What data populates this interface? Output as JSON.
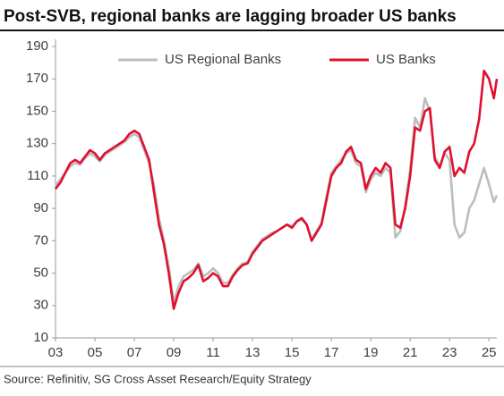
{
  "chart_data": {
    "type": "line",
    "title": "Post-SVB, regional banks are lagging broader US banks",
    "source": "Source: Refinitiv, SG Cross Asset Research/Equity Strategy",
    "legend": "top",
    "x": [
      3,
      3.25,
      3.5,
      3.75,
      4,
      4.25,
      4.5,
      4.75,
      5,
      5.25,
      5.5,
      5.75,
      6,
      6.25,
      6.5,
      6.75,
      7,
      7.25,
      7.5,
      7.75,
      8,
      8.25,
      8.5,
      8.75,
      9,
      9.25,
      9.5,
      9.75,
      10,
      10.25,
      10.5,
      10.75,
      11,
      11.25,
      11.5,
      11.75,
      12,
      12.25,
      12.5,
      12.75,
      13,
      13.25,
      13.5,
      13.75,
      14,
      14.25,
      14.5,
      14.75,
      15,
      15.25,
      15.5,
      15.75,
      16,
      16.25,
      16.5,
      16.75,
      17,
      17.25,
      17.5,
      17.75,
      18,
      18.25,
      18.5,
      18.75,
      19,
      19.25,
      19.5,
      19.75,
      20,
      20.25,
      20.5,
      20.75,
      21,
      21.25,
      21.5,
      21.75,
      22,
      22.25,
      22.5,
      22.75,
      23,
      23.25,
      23.5,
      23.75,
      24,
      24.25,
      24.5,
      24.75,
      25,
      25.25,
      25.4
    ],
    "series": [
      {
        "name": "US Regional Banks",
        "color": "#bdbdbd",
        "values": [
          104,
          108,
          112,
          116,
          118,
          117,
          121,
          124,
          122,
          119,
          123,
          125,
          127,
          129,
          131,
          134,
          136,
          134,
          126,
          118,
          104,
          84,
          70,
          54,
          32,
          42,
          48,
          50,
          52,
          56,
          48,
          50,
          53,
          50,
          44,
          44,
          49,
          53,
          56,
          57,
          63,
          67,
          71,
          73,
          75,
          76,
          78,
          80,
          79,
          82,
          83,
          80,
          71,
          76,
          81,
          97,
          112,
          116,
          120,
          124,
          126,
          118,
          116,
          100,
          108,
          112,
          110,
          115,
          112,
          72,
          76,
          92,
          114,
          146,
          140,
          158,
          150,
          122,
          116,
          124,
          120,
          80,
          72,
          75,
          90,
          95,
          105,
          115,
          105,
          94,
          98
        ]
      },
      {
        "name": "US Banks",
        "color": "#e0102f",
        "values": [
          102,
          106,
          112,
          118,
          120,
          118,
          122,
          126,
          124,
          120,
          124,
          126,
          128,
          130,
          132,
          136,
          138,
          136,
          128,
          120,
          100,
          80,
          68,
          50,
          28,
          38,
          45,
          47,
          50,
          55,
          45,
          47,
          50,
          48,
          42,
          42,
          48,
          52,
          55,
          56,
          62,
          66,
          70,
          72,
          74,
          76,
          78,
          80,
          78,
          82,
          84,
          80,
          70,
          75,
          80,
          95,
          110,
          115,
          118,
          125,
          128,
          120,
          118,
          102,
          110,
          115,
          112,
          118,
          115,
          80,
          78,
          90,
          110,
          140,
          138,
          150,
          152,
          120,
          115,
          125,
          128,
          110,
          115,
          112,
          125,
          130,
          145,
          175,
          170,
          158,
          170
        ]
      }
    ],
    "xlim": [
      3,
      25.4
    ],
    "xticks": [
      {
        "value": 3,
        "label": "03"
      },
      {
        "value": 5,
        "label": "05"
      },
      {
        "value": 7,
        "label": "07"
      },
      {
        "value": 9,
        "label": "09"
      },
      11,
      13,
      15,
      17,
      19,
      21,
      23,
      25
    ],
    "ylim": [
      10,
      190
    ],
    "yticks": [
      10,
      30,
      50,
      70,
      90,
      110,
      130,
      150,
      170,
      190
    ]
  }
}
